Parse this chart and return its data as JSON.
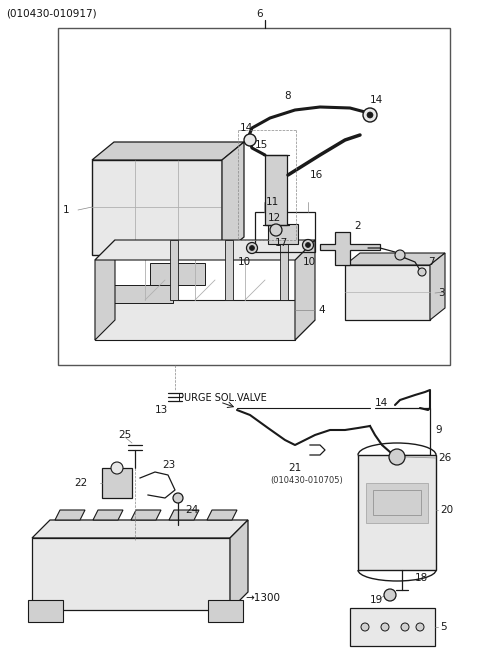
{
  "bg_color": "#ffffff",
  "lc": "#1a1a1a",
  "gray1": "#e8e8e8",
  "gray2": "#d0d0d0",
  "gray3": "#b0b0b0",
  "gray4": "#888888",
  "figsize": [
    4.8,
    6.55
  ],
  "dpi": 100,
  "header": "(010430-010917)",
  "purge_label": "PURGE SOL.VALVE",
  "sub_label": "(010430-010705)",
  "label_1300": "→1300"
}
